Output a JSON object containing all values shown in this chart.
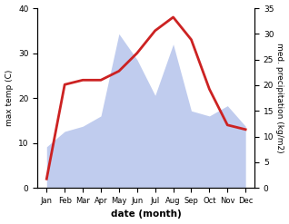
{
  "months": [
    "Jan",
    "Feb",
    "Mar",
    "Apr",
    "May",
    "Jun",
    "Jul",
    "Aug",
    "Sep",
    "Oct",
    "Nov",
    "Dec"
  ],
  "month_indices": [
    0,
    1,
    2,
    3,
    4,
    5,
    6,
    7,
    8,
    9,
    10,
    11
  ],
  "temperature": [
    2,
    23,
    24,
    24,
    26,
    30,
    35,
    38,
    33,
    22,
    14,
    13
  ],
  "precipitation": [
    8,
    11,
    12,
    14,
    30,
    25,
    18,
    28,
    15,
    14,
    16,
    12
  ],
  "temp_color": "#cc2222",
  "precip_color": "#c0ccee",
  "bg_color": "#ffffff",
  "left_ylim": [
    0,
    40
  ],
  "right_ylim": [
    0,
    35
  ],
  "left_yticks": [
    0,
    10,
    20,
    30,
    40
  ],
  "right_yticks": [
    0,
    5,
    10,
    15,
    20,
    25,
    30,
    35
  ],
  "xlabel": "date (month)",
  "ylabel_left": "max temp (C)",
  "ylabel_right": "med. precipitation (kg/m2)",
  "temp_linewidth": 2.0,
  "fig_width": 3.18,
  "fig_height": 2.47,
  "dpi": 100
}
